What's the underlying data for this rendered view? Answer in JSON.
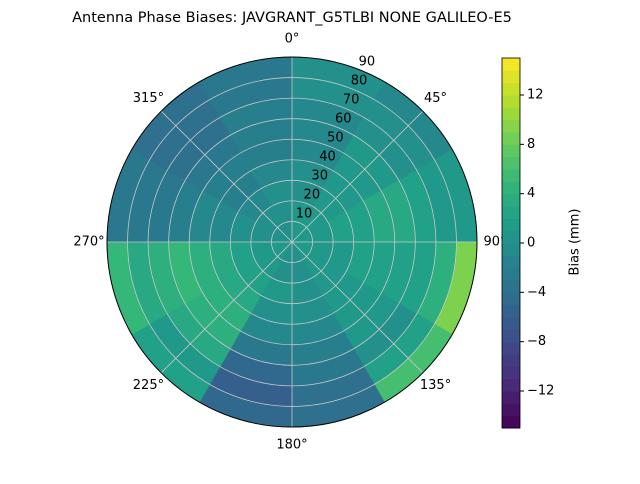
{
  "chart_data": {
    "type": "polar-heatmap",
    "title": "Antenna Phase Biases: JAVGRANT_G5TLBI NONE GALILEO-E5",
    "colorbar_label": "Bias (mm)",
    "colormap": "viridis",
    "azimuth_edges": [
      0,
      30,
      60,
      90,
      120,
      150,
      180,
      210,
      240,
      270,
      300,
      330,
      360
    ],
    "zenith_edges": [
      0,
      10,
      20,
      30,
      40,
      50,
      60,
      70,
      80,
      90
    ],
    "values": [
      [
        1,
        1,
        0,
        0,
        -1,
        -1,
        -1,
        0,
        0
      ],
      [
        1,
        1,
        1,
        1,
        1,
        1,
        0,
        0,
        -1
      ],
      [
        1,
        1,
        2,
        2,
        3,
        3,
        2,
        1,
        1
      ],
      [
        1,
        1,
        1,
        2,
        2,
        2,
        2,
        4,
        9
      ],
      [
        1,
        1,
        1,
        1,
        1,
        1,
        0,
        2,
        6
      ],
      [
        0,
        0,
        0,
        0,
        -1,
        -2,
        -3,
        -4,
        -4
      ],
      [
        0,
        0,
        1,
        0,
        -1,
        -3,
        -5,
        -6,
        -5
      ],
      [
        1,
        1,
        2,
        3,
        4,
        4,
        3,
        1,
        2
      ],
      [
        1,
        1,
        2,
        3,
        4,
        5,
        4,
        3,
        5
      ],
      [
        0,
        0,
        0,
        -1,
        -1,
        -2,
        -3,
        -3,
        -3
      ],
      [
        0,
        0,
        -1,
        -2,
        -2,
        -3,
        -4,
        -4,
        -4
      ],
      [
        0,
        0,
        0,
        -1,
        -2,
        -2,
        -2,
        -3,
        -3
      ]
    ],
    "rlim": [
      0,
      90
    ],
    "rticks": [
      10,
      20,
      30,
      40,
      50,
      60,
      70,
      80,
      90
    ],
    "thetaticks": [
      {
        "value": 0,
        "label": "0°"
      },
      {
        "value": 45,
        "label": "45°"
      },
      {
        "value": 90,
        "label": "90°"
      },
      {
        "value": 135,
        "label": "135°"
      },
      {
        "value": 180,
        "label": "180°"
      },
      {
        "value": 225,
        "label": "225°"
      },
      {
        "value": 270,
        "label": "270°"
      },
      {
        "value": 315,
        "label": "315°"
      }
    ],
    "clim": [
      -15,
      15
    ],
    "cticks": [
      {
        "value": -12,
        "label": "−12"
      },
      {
        "value": -8,
        "label": "−8"
      },
      {
        "value": -4,
        "label": "−4"
      },
      0,
      4,
      8,
      12
    ],
    "grid": true
  }
}
